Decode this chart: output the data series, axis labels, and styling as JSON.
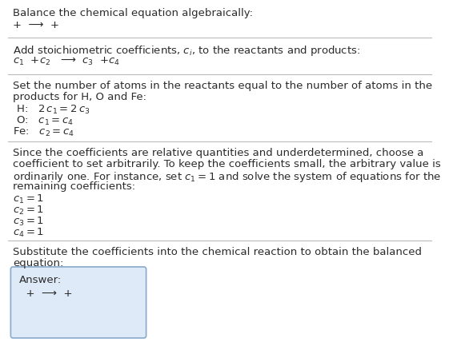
{
  "title": "Balance the chemical equation algebraically:",
  "line1": "+  ⟶  +",
  "section2_title": "Add stoichiometric coefficients, $c_i$, to the reactants and products:",
  "line2": "$c_1$  +$c_2$   ⟶  $c_3$  +$c_4$",
  "eq_H": " H:   $2\\,c_1 = 2\\,c_3$",
  "eq_O": " O:   $c_1 = c_4$",
  "eq_Fe": "Fe:   $c_2 = c_4$",
  "section4_para1": "Since the coefficients are relative quantities and underdetermined, choose a",
  "section4_para2": "coefficient to set arbitrarily. To keep the coefficients small, the arbitrary value is",
  "section4_para3": "ordinarily one. For instance, set $c_1 = 1$ and solve the system of equations for the",
  "section4_para4": "remaining coefficients:",
  "sol1": "$c_1 = 1$",
  "sol2": "$c_2 = 1$",
  "sol3": "$c_3 = 1$",
  "sol4": "$c_4 = 1$",
  "section5_para1": "Substitute the coefficients into the chemical reaction to obtain the balanced",
  "section5_para2": "equation:",
  "answer_label": "Answer:",
  "answer_eq": "  +  ⟶  +",
  "bg_color": "#ffffff",
  "text_color": "#2b2b2b",
  "line_color": "#bbbbbb",
  "answer_box_facecolor": "#deeaf7",
  "answer_box_edgecolor": "#88aacc",
  "font_size": 9.5
}
